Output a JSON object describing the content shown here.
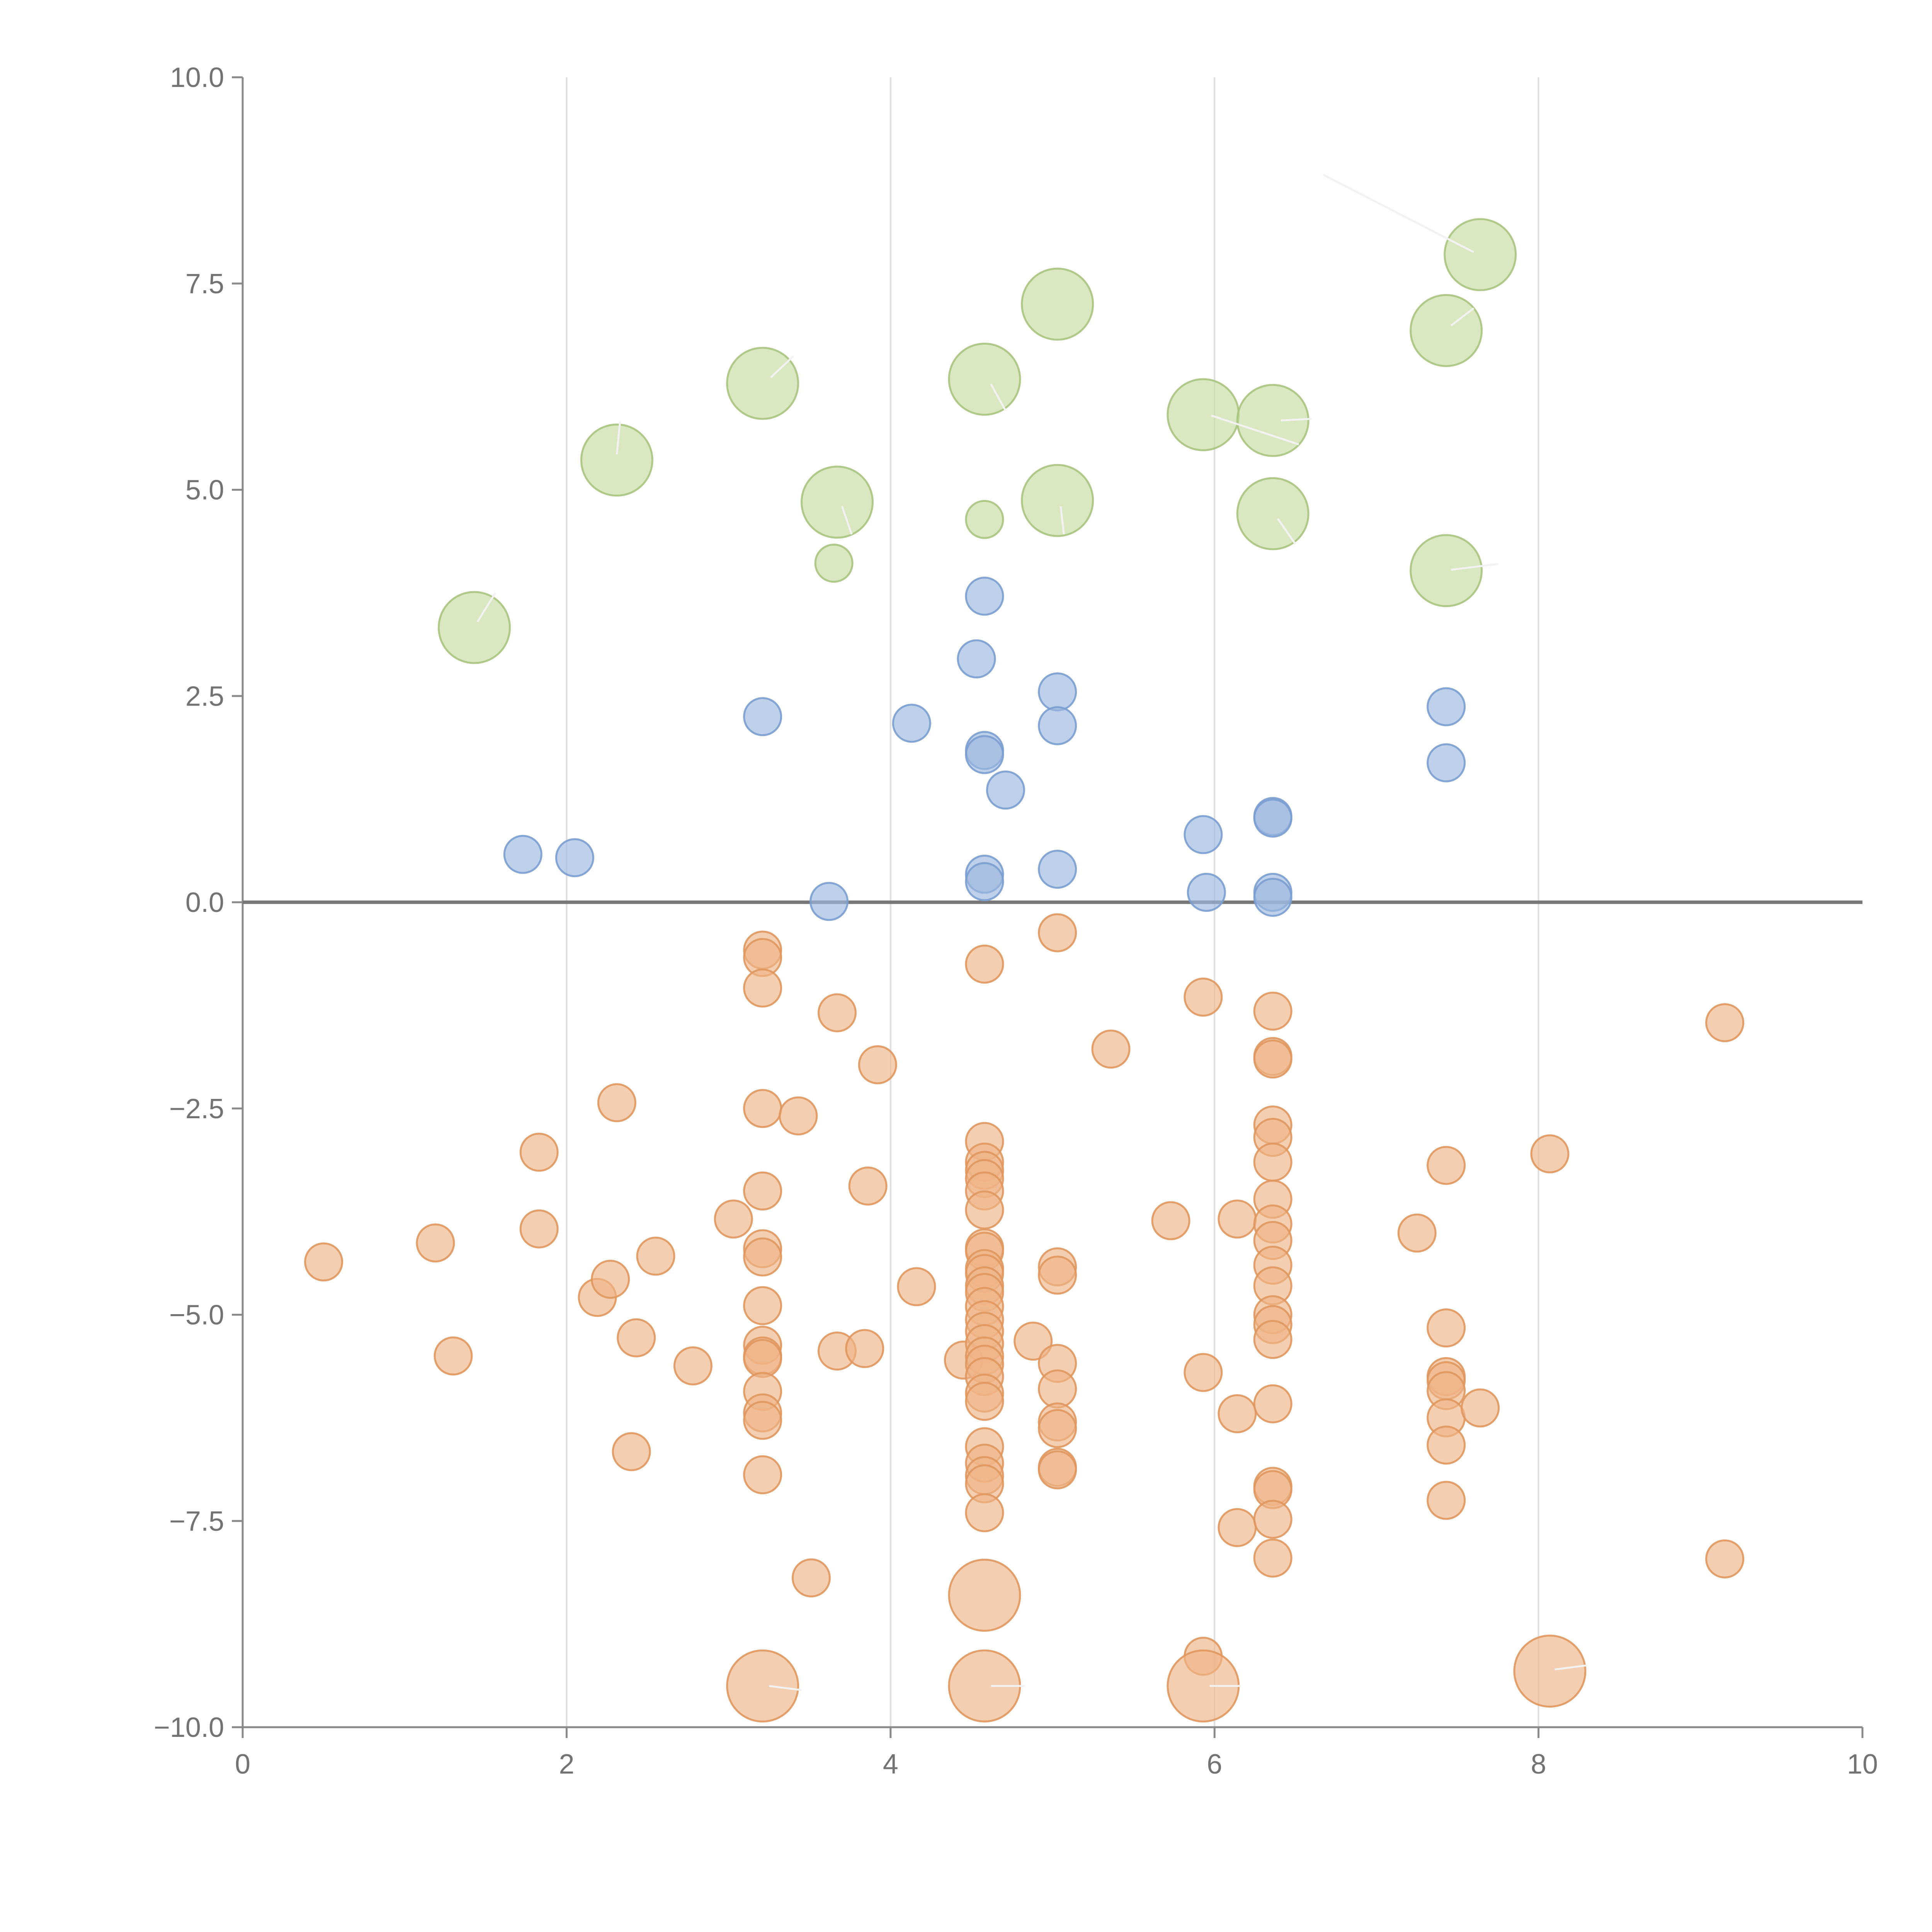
{
  "chart_data": {
    "type": "scatter",
    "title": "",
    "xlabel": "",
    "ylabel": "",
    "xlim": [
      0,
      10
    ],
    "ylim": [
      -10,
      10
    ],
    "x_ticks": [
      0,
      2,
      4,
      6,
      8,
      10
    ],
    "x_tick_labels": [
      "0",
      "2",
      "4",
      "6",
      "8",
      "10"
    ],
    "y_ticks": [
      -10,
      -7.5,
      -5,
      -2.5,
      0,
      2.5,
      5,
      7.5,
      10
    ],
    "y_tick_labels": [
      "−10.0",
      "−7.5",
      "−5.0",
      "−2.5",
      "0.0",
      "2.5",
      "5.0",
      "7.5",
      "10.0"
    ],
    "grid": "vertical",
    "zero_line": 0,
    "colors": {
      "green_fill": "#c5dca0",
      "green_stroke": "#a8c47e",
      "blue_fill": "#9db7de",
      "blue_stroke": "#7a9dd0",
      "orange_fill": "#eeb487",
      "orange_stroke": "#e0975e"
    },
    "series": [
      {
        "name": "large-green",
        "color": "green",
        "points": [
          {
            "x": 1.43,
            "y": 3.33,
            "size": "large"
          },
          {
            "x": 2.31,
            "y": 5.36,
            "size": "large"
          },
          {
            "x": 3.21,
            "y": 6.29,
            "size": "large"
          },
          {
            "x": 3.67,
            "y": 4.85,
            "size": "large"
          },
          {
            "x": 3.65,
            "y": 4.11,
            "size": "small"
          },
          {
            "x": 4.58,
            "y": 6.34,
            "size": "large"
          },
          {
            "x": 4.58,
            "y": 4.64,
            "size": "small"
          },
          {
            "x": 5.03,
            "y": 7.25,
            "size": "large"
          },
          {
            "x": 5.03,
            "y": 4.87,
            "size": "large"
          },
          {
            "x": 5.93,
            "y": 5.91,
            "size": "large"
          },
          {
            "x": 6.36,
            "y": 5.84,
            "size": "large"
          },
          {
            "x": 6.36,
            "y": 4.71,
            "size": "large"
          },
          {
            "x": 7.43,
            "y": 6.93,
            "size": "large"
          },
          {
            "x": 7.64,
            "y": 7.85,
            "size": "large"
          },
          {
            "x": 7.43,
            "y": 4.02,
            "size": "large"
          }
        ]
      },
      {
        "name": "small-blue",
        "color": "blue",
        "points": [
          {
            "x": 1.73,
            "y": 0.58
          },
          {
            "x": 2.05,
            "y": 0.54
          },
          {
            "x": 3.21,
            "y": 2.25
          },
          {
            "x": 3.62,
            "y": 0.01
          },
          {
            "x": 4.13,
            "y": 2.17
          },
          {
            "x": 4.53,
            "y": 2.95
          },
          {
            "x": 4.58,
            "y": 3.71
          },
          {
            "x": 4.58,
            "y": 1.84
          },
          {
            "x": 4.58,
            "y": 1.79
          },
          {
            "x": 4.71,
            "y": 1.36
          },
          {
            "x": 4.58,
            "y": 0.34
          },
          {
            "x": 4.58,
            "y": 0.25
          },
          {
            "x": 5.03,
            "y": 2.55
          },
          {
            "x": 5.03,
            "y": 2.14
          },
          {
            "x": 5.03,
            "y": 0.4
          },
          {
            "x": 5.93,
            "y": 0.82
          },
          {
            "x": 5.95,
            "y": 0.12
          },
          {
            "x": 6.36,
            "y": 1.04
          },
          {
            "x": 6.36,
            "y": 1.02
          },
          {
            "x": 6.36,
            "y": 0.12
          },
          {
            "x": 6.36,
            "y": 0.06
          },
          {
            "x": 7.43,
            "y": 2.37
          },
          {
            "x": 7.43,
            "y": 1.69
          }
        ]
      },
      {
        "name": "small-orange",
        "color": "orange",
        "points": [
          {
            "x": 0.5,
            "y": -4.36
          },
          {
            "x": 1.19,
            "y": -4.13
          },
          {
            "x": 1.3,
            "y": -5.5
          },
          {
            "x": 1.83,
            "y": -3.03
          },
          {
            "x": 1.83,
            "y": -3.96
          },
          {
            "x": 2.19,
            "y": -4.79
          },
          {
            "x": 2.27,
            "y": -4.57
          },
          {
            "x": 2.31,
            "y": -2.43
          },
          {
            "x": 2.43,
            "y": -5.28
          },
          {
            "x": 2.4,
            "y": -6.66
          },
          {
            "x": 2.55,
            "y": -4.29
          },
          {
            "x": 2.78,
            "y": -5.62
          },
          {
            "x": 3.03,
            "y": -3.84
          },
          {
            "x": 3.21,
            "y": -0.58
          },
          {
            "x": 3.21,
            "y": -0.67
          },
          {
            "x": 3.21,
            "y": -1.04
          },
          {
            "x": 3.21,
            "y": -2.5
          },
          {
            "x": 3.21,
            "y": -3.5
          },
          {
            "x": 3.21,
            "y": -4.2
          },
          {
            "x": 3.21,
            "y": -4.3
          },
          {
            "x": 3.21,
            "y": -4.89
          },
          {
            "x": 3.21,
            "y": -5.37
          },
          {
            "x": 3.21,
            "y": -5.5
          },
          {
            "x": 3.21,
            "y": -5.53
          },
          {
            "x": 3.21,
            "y": -5.93
          },
          {
            "x": 3.21,
            "y": -6.19
          },
          {
            "x": 3.21,
            "y": -6.28
          },
          {
            "x": 3.21,
            "y": -6.94
          },
          {
            "x": 3.43,
            "y": -2.59
          },
          {
            "x": 3.51,
            "y": -8.19
          },
          {
            "x": 3.67,
            "y": -1.34
          },
          {
            "x": 3.67,
            "y": -5.44
          },
          {
            "x": 3.84,
            "y": -5.41
          },
          {
            "x": 3.86,
            "y": -3.44
          },
          {
            "x": 3.92,
            "y": -1.97
          },
          {
            "x": 4.16,
            "y": -4.66
          },
          {
            "x": 4.45,
            "y": -5.55
          },
          {
            "x": 4.58,
            "y": -0.75
          },
          {
            "x": 4.58,
            "y": -2.9
          },
          {
            "x": 4.58,
            "y": -3.15
          },
          {
            "x": 4.58,
            "y": -3.25
          },
          {
            "x": 4.58,
            "y": -3.35
          },
          {
            "x": 4.58,
            "y": -3.5
          },
          {
            "x": 4.58,
            "y": -3.73
          },
          {
            "x": 4.58,
            "y": -4.19
          },
          {
            "x": 4.58,
            "y": -4.23
          },
          {
            "x": 4.58,
            "y": -4.44
          },
          {
            "x": 4.58,
            "y": -4.5
          },
          {
            "x": 4.58,
            "y": -4.65
          },
          {
            "x": 4.58,
            "y": -4.73
          },
          {
            "x": 4.58,
            "y": -4.9
          },
          {
            "x": 4.58,
            "y": -5.06
          },
          {
            "x": 4.58,
            "y": -5.2
          },
          {
            "x": 4.58,
            "y": -5.35
          },
          {
            "x": 4.58,
            "y": -5.5
          },
          {
            "x": 4.58,
            "y": -5.6
          },
          {
            "x": 4.58,
            "y": -5.75
          },
          {
            "x": 4.58,
            "y": -5.95
          },
          {
            "x": 4.58,
            "y": -6.05
          },
          {
            "x": 4.58,
            "y": -6.6
          },
          {
            "x": 4.58,
            "y": -6.8
          },
          {
            "x": 4.58,
            "y": -6.95
          },
          {
            "x": 4.58,
            "y": -7.05
          },
          {
            "x": 4.58,
            "y": -7.4
          },
          {
            "x": 4.88,
            "y": -5.32
          },
          {
            "x": 5.03,
            "y": -0.37
          },
          {
            "x": 5.03,
            "y": -4.42
          },
          {
            "x": 5.03,
            "y": -4.52
          },
          {
            "x": 5.03,
            "y": -5.59
          },
          {
            "x": 5.03,
            "y": -5.9
          },
          {
            "x": 5.03,
            "y": -6.3
          },
          {
            "x": 5.03,
            "y": -6.38
          },
          {
            "x": 5.03,
            "y": -6.85
          },
          {
            "x": 5.03,
            "y": -6.88
          },
          {
            "x": 5.36,
            "y": -1.78
          },
          {
            "x": 5.73,
            "y": -3.86
          },
          {
            "x": 5.93,
            "y": -1.15
          },
          {
            "x": 5.93,
            "y": -5.7
          },
          {
            "x": 5.93,
            "y": -9.14
          },
          {
            "x": 6.14,
            "y": -3.84
          },
          {
            "x": 6.14,
            "y": -6.2
          },
          {
            "x": 6.14,
            "y": -7.58
          },
          {
            "x": 6.36,
            "y": -1.32
          },
          {
            "x": 6.36,
            "y": -1.87
          },
          {
            "x": 6.36,
            "y": -1.9
          },
          {
            "x": 6.36,
            "y": -2.7
          },
          {
            "x": 6.36,
            "y": -2.85
          },
          {
            "x": 6.36,
            "y": -3.15
          },
          {
            "x": 6.36,
            "y": -3.6
          },
          {
            "x": 6.36,
            "y": -3.9
          },
          {
            "x": 6.36,
            "y": -4.1
          },
          {
            "x": 6.36,
            "y": -4.4
          },
          {
            "x": 6.36,
            "y": -4.65
          },
          {
            "x": 6.36,
            "y": -5.0
          },
          {
            "x": 6.36,
            "y": -5.12
          },
          {
            "x": 6.36,
            "y": -5.3
          },
          {
            "x": 6.36,
            "y": -6.08
          },
          {
            "x": 6.36,
            "y": -7.08
          },
          {
            "x": 6.36,
            "y": -7.12
          },
          {
            "x": 6.36,
            "y": -7.48
          },
          {
            "x": 6.36,
            "y": -7.95
          },
          {
            "x": 7.25,
            "y": -4.01
          },
          {
            "x": 7.43,
            "y": -3.19
          },
          {
            "x": 7.43,
            "y": -5.16
          },
          {
            "x": 7.43,
            "y": -5.75
          },
          {
            "x": 7.43,
            "y": -5.8
          },
          {
            "x": 7.43,
            "y": -5.92
          },
          {
            "x": 7.43,
            "y": -6.25
          },
          {
            "x": 7.43,
            "y": -6.58
          },
          {
            "x": 7.43,
            "y": -7.25
          },
          {
            "x": 7.64,
            "y": -6.13
          },
          {
            "x": 8.07,
            "y": -3.05
          },
          {
            "x": 9.15,
            "y": -1.46
          },
          {
            "x": 9.15,
            "y": -7.96
          }
        ]
      },
      {
        "name": "large-orange",
        "color": "orange",
        "points": [
          {
            "x": 3.21,
            "y": -9.5,
            "size": "large"
          },
          {
            "x": 4.58,
            "y": -8.4,
            "size": "large"
          },
          {
            "x": 4.58,
            "y": -9.5,
            "size": "large"
          },
          {
            "x": 5.93,
            "y": -9.5,
            "size": "large"
          },
          {
            "x": 8.07,
            "y": -9.32,
            "size": "large"
          }
        ]
      }
    ],
    "leader_lines": [
      {
        "x1": 7.6,
        "y1": 7.88,
        "x2": 6.67,
        "y2": 8.82,
        "color": "#b8b8b8"
      },
      {
        "x1": 1.45,
        "y1": 3.4,
        "x2": 1.56,
        "y2": 3.75
      },
      {
        "x1": 2.31,
        "y1": 5.43,
        "x2": 2.33,
        "y2": 5.83
      },
      {
        "x1": 3.26,
        "y1": 6.36,
        "x2": 3.4,
        "y2": 6.62
      },
      {
        "x1": 3.7,
        "y1": 4.8,
        "x2": 3.76,
        "y2": 4.46
      },
      {
        "x1": 4.62,
        "y1": 6.28,
        "x2": 4.71,
        "y2": 5.96
      },
      {
        "x1": 5.05,
        "y1": 4.8,
        "x2": 5.07,
        "y2": 4.46
      },
      {
        "x1": 5.98,
        "y1": 5.9,
        "x2": 6.52,
        "y2": 5.55
      },
      {
        "x1": 6.41,
        "y1": 5.84,
        "x2": 6.6,
        "y2": 5.86
      },
      {
        "x1": 6.39,
        "y1": 4.65,
        "x2": 6.5,
        "y2": 4.34
      },
      {
        "x1": 7.46,
        "y1": 6.99,
        "x2": 7.6,
        "y2": 7.2
      },
      {
        "x1": 7.46,
        "y1": 4.03,
        "x2": 7.75,
        "y2": 4.1
      },
      {
        "x1": 3.25,
        "y1": -9.5,
        "x2": 3.45,
        "y2": -9.55
      },
      {
        "x1": 4.62,
        "y1": -9.5,
        "x2": 4.83,
        "y2": -9.5
      },
      {
        "x1": 5.97,
        "y1": -9.5,
        "x2": 6.16,
        "y2": -9.5
      },
      {
        "x1": 8.1,
        "y1": -9.3,
        "x2": 8.3,
        "y2": -9.25
      }
    ]
  }
}
